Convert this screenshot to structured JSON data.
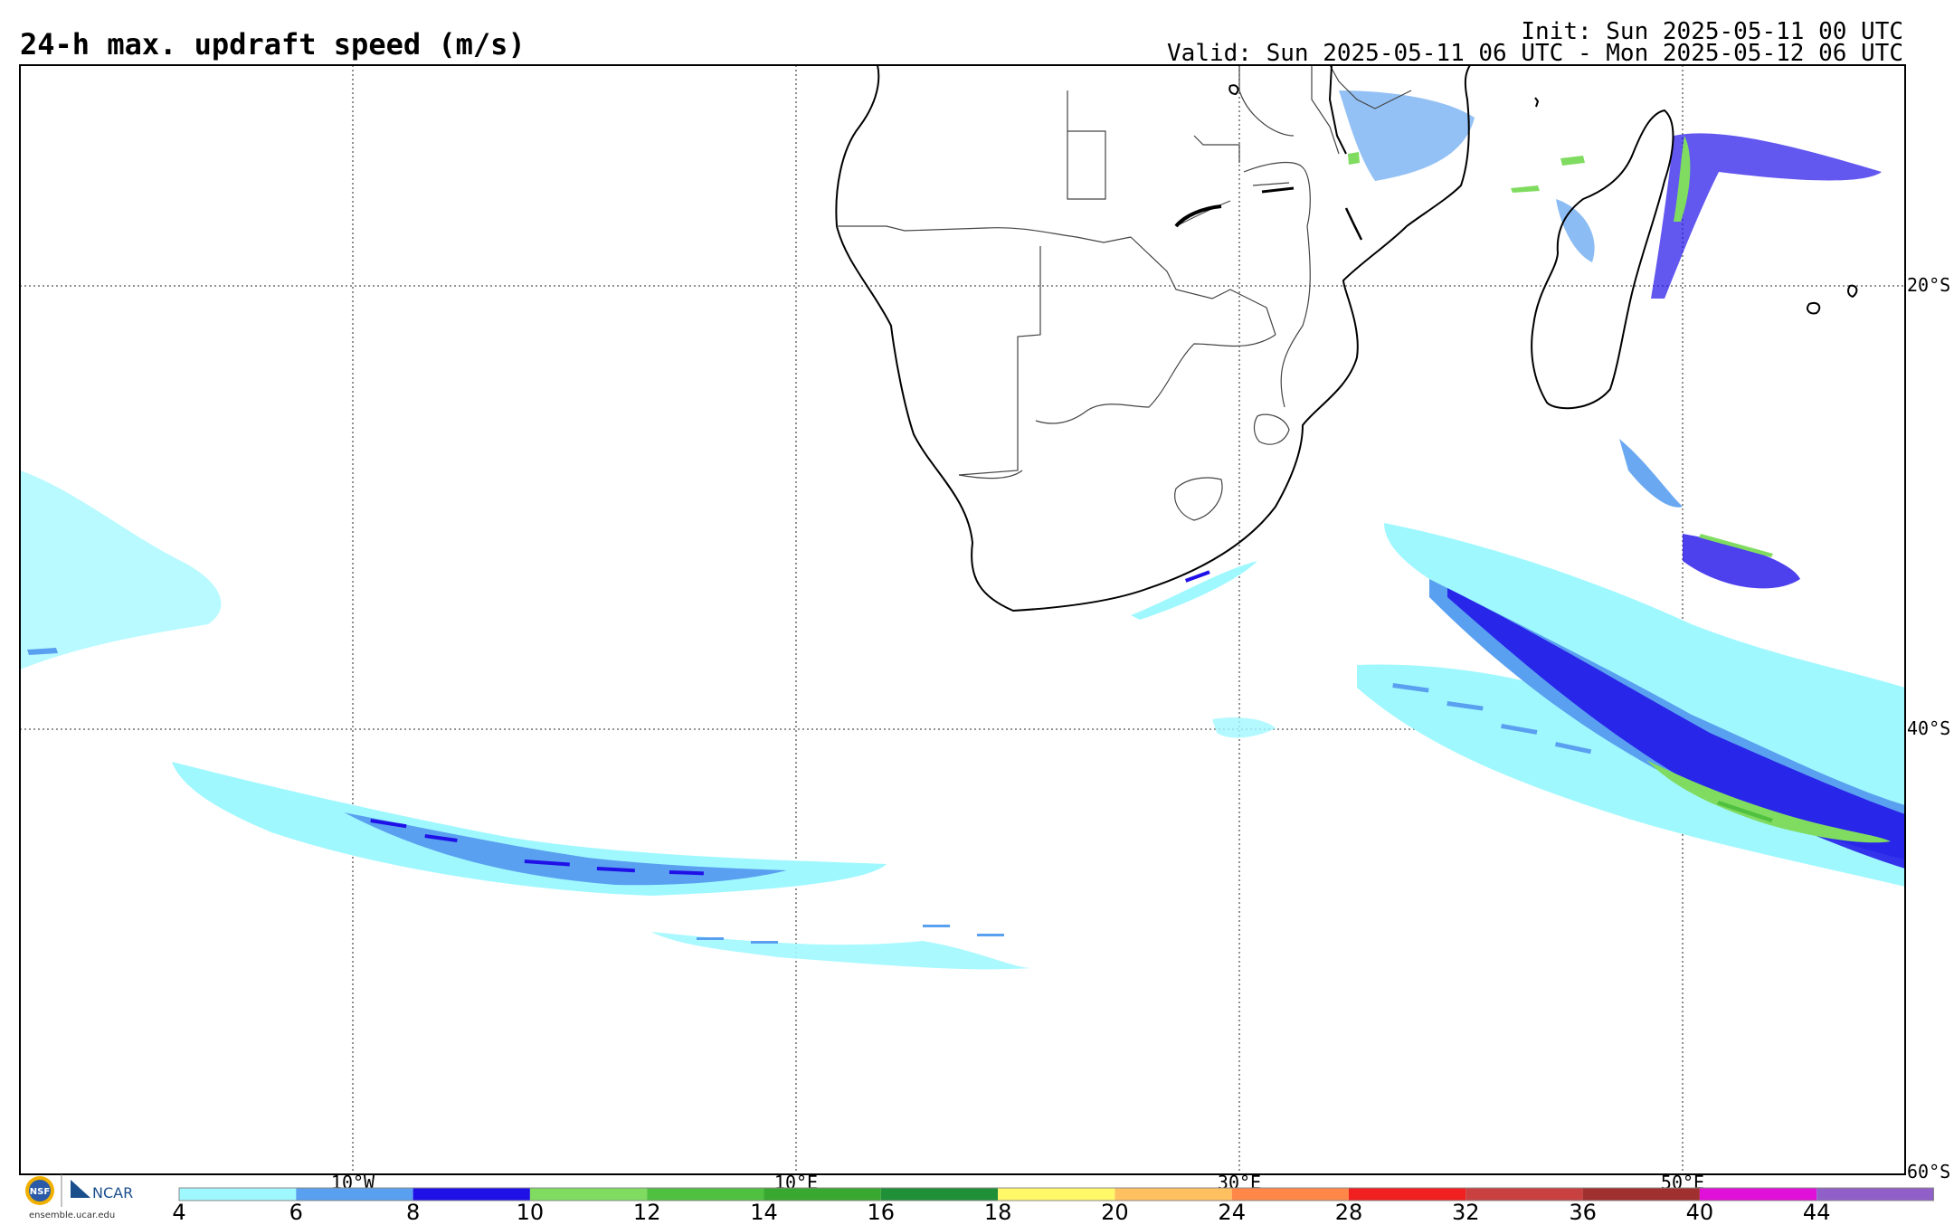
{
  "title": "24-h max. updraft speed (m/s)",
  "init": "Init: Sun 2025-05-11 00 UTC",
  "valid": "Valid: Sun 2025-05-11 06 UTC - Mon 2025-05-12 06 UTC",
  "map": {
    "extent": {
      "lon": [
        -25,
        60
      ],
      "lat": [
        -10,
        -60
      ]
    },
    "lon_labels": [
      "10°W",
      "10°E",
      "30°E",
      "50°E"
    ],
    "lat_labels": [
      "20°S",
      "40°S",
      "60°S"
    ],
    "gridlines": "dotted"
  },
  "colorbar": {
    "ticks": [
      "4",
      "6",
      "8",
      "10",
      "12",
      "14",
      "16",
      "18",
      "20",
      "24",
      "28",
      "32",
      "36",
      "40",
      "44"
    ],
    "colors": [
      "#a0f8ff",
      "#5aa0f0",
      "#2010e8",
      "#80dc60",
      "#50c040",
      "#38a830",
      "#209038",
      "#fff868",
      "#ffc060",
      "#ff8848",
      "#f02020",
      "#c84040",
      "#a03030",
      "#e010d8",
      "#9060c8"
    ]
  },
  "credits": {
    "org_a": "NSF",
    "org_b": "NCAR",
    "url": "ensemble.ucar.edu"
  }
}
